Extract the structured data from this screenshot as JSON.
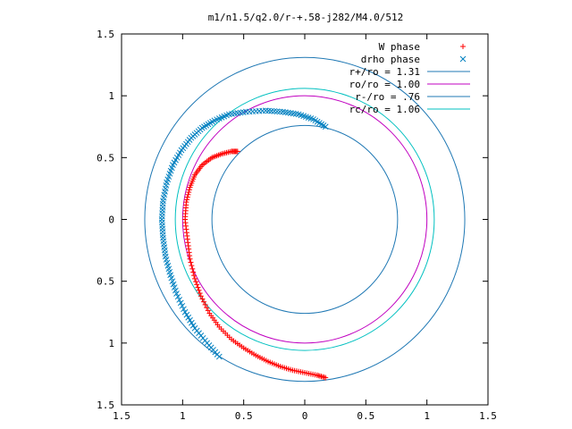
{
  "chart_data": {
    "type": "scatter",
    "title": "m1/n1.5/q2.0/r-+.58-j282/M4.0/512",
    "xlabel": "",
    "ylabel": "",
    "xlim": [
      -1.5,
      1.5
    ],
    "ylim": [
      -1.5,
      1.5
    ],
    "x_ticks": [
      -1.5,
      -1,
      -0.5,
      0,
      0.5,
      1,
      1.5
    ],
    "x_tick_labels": [
      "1.5",
      "1",
      "0.5",
      "0",
      "0.5",
      "1",
      "1.5"
    ],
    "y_ticks": [
      1.5,
      1,
      0.5,
      0,
      -0.5,
      -1,
      -1.5
    ],
    "y_tick_labels": [
      "1.5",
      "1",
      "0.5",
      "0",
      "0.5",
      "1",
      "1.5"
    ],
    "grid": false,
    "legend_position": "top-right",
    "legend": [
      {
        "label": "W phase",
        "kind": "marker",
        "marker": "plus",
        "color": "#ff0000"
      },
      {
        "label": "drho phase",
        "kind": "marker",
        "marker": "cross",
        "color": "#0080c0"
      },
      {
        "label": "r+/ro = 1.31",
        "kind": "line",
        "color": "#1f78b4"
      },
      {
        "label": "ro/ro = 1.00",
        "kind": "line",
        "color": "#c000c0"
      },
      {
        "label": "r-/ro = .76",
        "kind": "line",
        "color": "#1f78b4"
      },
      {
        "label": "rc/ro = 1.06",
        "kind": "line",
        "color": "#00c0c0"
      }
    ],
    "circles": [
      {
        "name": "r+/ro = 1.31",
        "radius": 1.31,
        "color": "#1f78b4"
      },
      {
        "name": "ro/ro = 1.00",
        "radius": 1.0,
        "color": "#c000c0"
      },
      {
        "name": "r-/ro = .76",
        "radius": 0.76,
        "color": "#1f78b4"
      },
      {
        "name": "rc/ro = 1.06",
        "radius": 1.06,
        "color": "#00c0c0"
      }
    ],
    "series": [
      {
        "name": "W phase",
        "marker": "plus",
        "color": "#ff0000",
        "points": [
          [
            0.17,
            -1.28
          ],
          [
            0.1,
            -1.26
          ],
          [
            0.0,
            -1.24
          ],
          [
            -0.1,
            -1.22
          ],
          [
            -0.2,
            -1.19
          ],
          [
            -0.3,
            -1.15
          ],
          [
            -0.4,
            -1.1
          ],
          [
            -0.5,
            -1.04
          ],
          [
            -0.6,
            -0.97
          ],
          [
            -0.7,
            -0.87
          ],
          [
            -0.78,
            -0.76
          ],
          [
            -0.85,
            -0.62
          ],
          [
            -0.9,
            -0.48
          ],
          [
            -0.94,
            -0.32
          ],
          [
            -0.96,
            -0.16
          ],
          [
            -0.98,
            0.0
          ],
          [
            -0.97,
            0.14
          ],
          [
            -0.94,
            0.26
          ],
          [
            -0.9,
            0.36
          ],
          [
            -0.84,
            0.44
          ],
          [
            -0.76,
            0.5
          ],
          [
            -0.68,
            0.53
          ],
          [
            -0.6,
            0.55
          ],
          [
            -0.55,
            0.55
          ]
        ]
      },
      {
        "name": "drho phase",
        "marker": "cross",
        "color": "#0080c0",
        "points": [
          [
            -0.7,
            -1.11
          ],
          [
            -0.8,
            -1.0
          ],
          [
            -0.9,
            -0.88
          ],
          [
            -0.98,
            -0.75
          ],
          [
            -1.05,
            -0.6
          ],
          [
            -1.1,
            -0.45
          ],
          [
            -1.14,
            -0.3
          ],
          [
            -1.16,
            -0.15
          ],
          [
            -1.17,
            0.0
          ],
          [
            -1.16,
            0.15
          ],
          [
            -1.13,
            0.3
          ],
          [
            -1.08,
            0.44
          ],
          [
            -1.01,
            0.56
          ],
          [
            -0.93,
            0.66
          ],
          [
            -0.84,
            0.74
          ],
          [
            -0.74,
            0.8
          ],
          [
            -0.62,
            0.85
          ],
          [
            -0.48,
            0.87
          ],
          [
            -0.32,
            0.88
          ],
          [
            -0.18,
            0.87
          ],
          [
            -0.05,
            0.85
          ],
          [
            0.07,
            0.81
          ],
          [
            0.17,
            0.75
          ]
        ]
      }
    ]
  }
}
